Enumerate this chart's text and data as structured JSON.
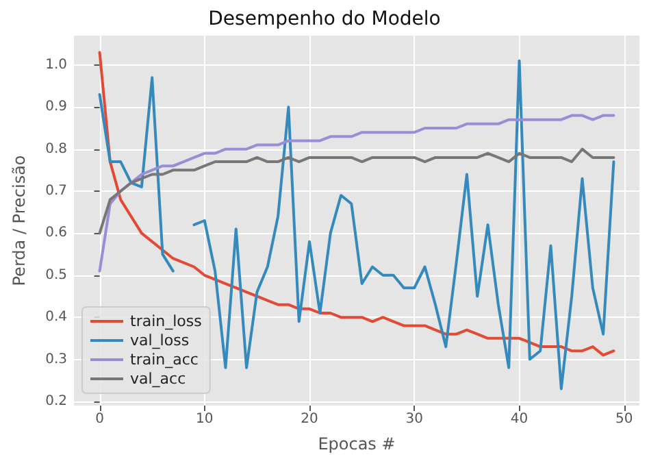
{
  "chart_data": {
    "type": "line",
    "title": "Desempenho do Modelo",
    "xlabel": "Epocas #",
    "ylabel": "Perda / Precisão",
    "x": [
      0,
      1,
      2,
      3,
      4,
      5,
      6,
      7,
      8,
      9,
      10,
      11,
      12,
      13,
      14,
      15,
      16,
      17,
      18,
      19,
      20,
      21,
      22,
      23,
      24,
      25,
      26,
      27,
      28,
      29,
      30,
      31,
      32,
      33,
      34,
      35,
      36,
      37,
      38,
      39,
      40,
      41,
      42,
      43,
      44,
      45,
      46,
      47,
      48,
      49
    ],
    "series": [
      {
        "name": "train_loss",
        "color": "#e24a33",
        "values": [
          1.03,
          0.77,
          0.68,
          0.64,
          0.6,
          0.58,
          0.56,
          0.54,
          0.53,
          0.52,
          0.5,
          0.49,
          0.48,
          0.47,
          0.46,
          0.45,
          0.44,
          0.43,
          0.43,
          0.42,
          0.42,
          0.41,
          0.41,
          0.4,
          0.4,
          0.4,
          0.39,
          0.4,
          0.39,
          0.38,
          0.38,
          0.38,
          0.37,
          0.36,
          0.36,
          0.37,
          0.36,
          0.35,
          0.35,
          0.35,
          0.35,
          0.34,
          0.33,
          0.33,
          0.33,
          0.32,
          0.32,
          0.33,
          0.31,
          0.32
        ]
      },
      {
        "name": "val_loss",
        "color": "#348abd",
        "values": [
          0.93,
          0.77,
          0.77,
          0.72,
          0.71,
          0.97,
          0.55,
          0.51,
          null,
          0.62,
          0.63,
          0.51,
          0.28,
          0.61,
          0.28,
          0.46,
          0.52,
          0.64,
          0.9,
          0.39,
          0.58,
          0.41,
          0.6,
          0.69,
          0.67,
          0.48,
          0.52,
          0.5,
          0.5,
          0.47,
          0.47,
          0.52,
          0.43,
          0.33,
          0.53,
          0.74,
          0.45,
          0.62,
          0.43,
          0.28,
          1.01,
          0.3,
          0.32,
          0.57,
          0.23,
          0.45,
          0.73,
          0.47,
          0.36,
          0.77
        ]
      },
      {
        "name": "train_acc",
        "color": "#988ed5",
        "values": [
          0.51,
          0.67,
          0.7,
          0.72,
          0.74,
          0.75,
          0.76,
          0.76,
          0.77,
          0.78,
          0.79,
          0.79,
          0.8,
          0.8,
          0.8,
          0.81,
          0.81,
          0.81,
          0.82,
          0.82,
          0.82,
          0.82,
          0.83,
          0.83,
          0.83,
          0.84,
          0.84,
          0.84,
          0.84,
          0.84,
          0.84,
          0.85,
          0.85,
          0.85,
          0.85,
          0.86,
          0.86,
          0.86,
          0.86,
          0.87,
          0.87,
          0.87,
          0.87,
          0.87,
          0.87,
          0.88,
          0.88,
          0.87,
          0.88,
          0.88
        ]
      },
      {
        "name": "val_acc",
        "color": "#777777",
        "values": [
          0.6,
          0.68,
          0.7,
          0.72,
          0.73,
          0.74,
          0.74,
          0.75,
          0.75,
          0.75,
          0.76,
          0.77,
          0.77,
          0.77,
          0.77,
          0.78,
          0.77,
          0.77,
          0.78,
          0.77,
          0.78,
          0.78,
          0.78,
          0.78,
          0.78,
          0.77,
          0.78,
          0.78,
          0.78,
          0.78,
          0.78,
          0.77,
          0.78,
          0.78,
          0.78,
          0.78,
          0.78,
          0.79,
          0.78,
          0.77,
          0.79,
          0.78,
          0.78,
          0.78,
          0.78,
          0.77,
          0.8,
          0.78,
          0.78,
          0.78
        ]
      }
    ],
    "xlim": [
      -2.45,
      51.45
    ],
    "xticks": [
      0,
      10,
      20,
      30,
      40,
      50
    ],
    "ylim": [
      0.19,
      1.07
    ],
    "yticks": [
      0.2,
      0.3,
      0.4,
      0.5,
      0.6,
      0.7,
      0.8,
      0.9,
      {
        "value": 1,
        "label": "1.0"
      }
    ],
    "grid": true,
    "legend": "bottom left",
    "marker": "none",
    "line_style": "solid"
  }
}
